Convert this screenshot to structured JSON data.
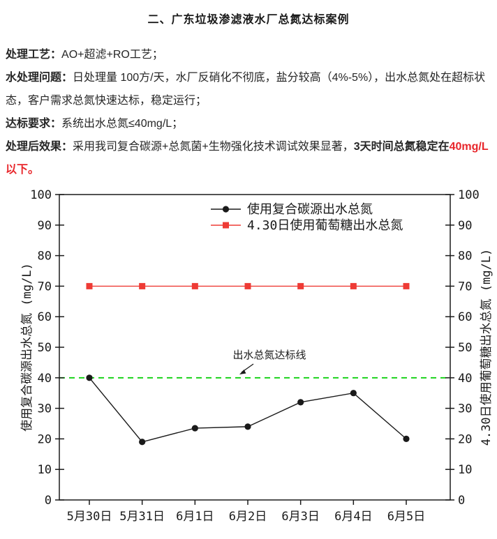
{
  "title": "二、广东垃圾渗滤液水厂总氮达标案例",
  "paragraphs": [
    {
      "segments": [
        {
          "text": "处理工艺：",
          "bold": true
        },
        {
          "text": "AO+超滤+RO工艺；",
          "bold": false
        }
      ]
    },
    {
      "segments": [
        {
          "text": "水处理问题：",
          "bold": true
        },
        {
          "text": "日处理量 100方/天，水厂反硝化不彻底，盐分较高（4%-5%），出水总氮处在超标状态，客户需求总氮快速达标，稳定运行；",
          "bold": false
        }
      ]
    },
    {
      "segments": [
        {
          "text": "达标要求：",
          "bold": true
        },
        {
          "text": "系统出水总氮≤40mg/L；",
          "bold": false
        }
      ]
    },
    {
      "segments": [
        {
          "text": "处理后效果：",
          "bold": true
        },
        {
          "text": "采用我司复合碳源+总氮菌+生物强化技术调试效果显著，",
          "bold": false
        },
        {
          "text": "3天时间总氮稳定在",
          "bold": true
        },
        {
          "text": "40mg/L以下。",
          "bold": true,
          "color": "#e8262b"
        }
      ]
    }
  ],
  "chart_data": {
    "type": "line",
    "categories": [
      "5月30日",
      "5月31日",
      "6月1日",
      "6月2日",
      "6月3日",
      "6月4日",
      "6月5日"
    ],
    "series": [
      {
        "name": "使用复合碳源出水总氮",
        "color": "#1a1a1a",
        "marker": "circle",
        "values": [
          40,
          19,
          23.5,
          24,
          32,
          35,
          20
        ]
      },
      {
        "name": "4.30日使用葡萄糖出水总氮",
        "color": "#ee3b35",
        "marker": "square",
        "values": [
          70,
          70,
          70,
          70,
          70,
          70,
          70
        ]
      }
    ],
    "left_axis": {
      "label": "使用复合碳源出水总氮 (mg/L)",
      "min": 0,
      "max": 100,
      "step": 10
    },
    "right_axis": {
      "label": "4.30日使用葡萄糖出水总氮 (mg/L)",
      "min": 0,
      "max": 100,
      "step": 10
    },
    "reference_line": {
      "value": 40,
      "color": "#0bd00b",
      "style": "dashed",
      "label": "出水总氮达标线"
    },
    "legend_position": "top-center-inside",
    "grid": false,
    "axis_color": "#1a1a1a"
  }
}
